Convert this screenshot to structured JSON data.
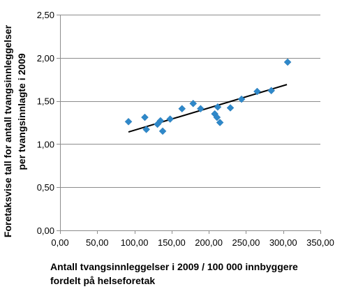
{
  "chart_data": {
    "type": "scatter",
    "title": "",
    "xlabel_lines": [
      "Antall tvangsinnleggelser i 2009 / 100 000 innbyggere",
      "fordelt på helseforetak"
    ],
    "ylabel_lines": [
      "Foretaksvise tall for antall tvangsinnleggelser",
      "per tvangsinnlagte i 2009"
    ],
    "xlim": [
      0,
      350
    ],
    "ylim": [
      0,
      2.5
    ],
    "x_ticks": [
      0,
      50,
      100,
      150,
      200,
      250,
      300,
      350
    ],
    "x_tick_labels": [
      "0,00",
      "50,00",
      "100,00",
      "150,00",
      "200,00",
      "250,00",
      "300,00",
      "350,00"
    ],
    "y_ticks": [
      0,
      0.5,
      1.0,
      1.5,
      2.0,
      2.5
    ],
    "y_tick_labels": [
      "0,00",
      "0,50",
      "1,00",
      "1,50",
      "2,00",
      "2,50"
    ],
    "grid": "horizontal",
    "marker": "diamond",
    "marker_color": "#2f88c9",
    "points": [
      {
        "x": 92,
        "y": 1.26
      },
      {
        "x": 114,
        "y": 1.31
      },
      {
        "x": 116,
        "y": 1.17
      },
      {
        "x": 131,
        "y": 1.23
      },
      {
        "x": 135,
        "y": 1.27
      },
      {
        "x": 138,
        "y": 1.15
      },
      {
        "x": 148,
        "y": 1.29
      },
      {
        "x": 164,
        "y": 1.41
      },
      {
        "x": 179,
        "y": 1.47
      },
      {
        "x": 189,
        "y": 1.41
      },
      {
        "x": 208,
        "y": 1.35
      },
      {
        "x": 211,
        "y": 1.31
      },
      {
        "x": 212,
        "y": 1.43
      },
      {
        "x": 215,
        "y": 1.25
      },
      {
        "x": 229,
        "y": 1.42
      },
      {
        "x": 244,
        "y": 1.52
      },
      {
        "x": 265,
        "y": 1.61
      },
      {
        "x": 284,
        "y": 1.62
      },
      {
        "x": 306,
        "y": 1.95
      }
    ],
    "trendline": {
      "x": [
        92,
        305
      ],
      "y": [
        1.14,
        1.69
      ]
    }
  }
}
